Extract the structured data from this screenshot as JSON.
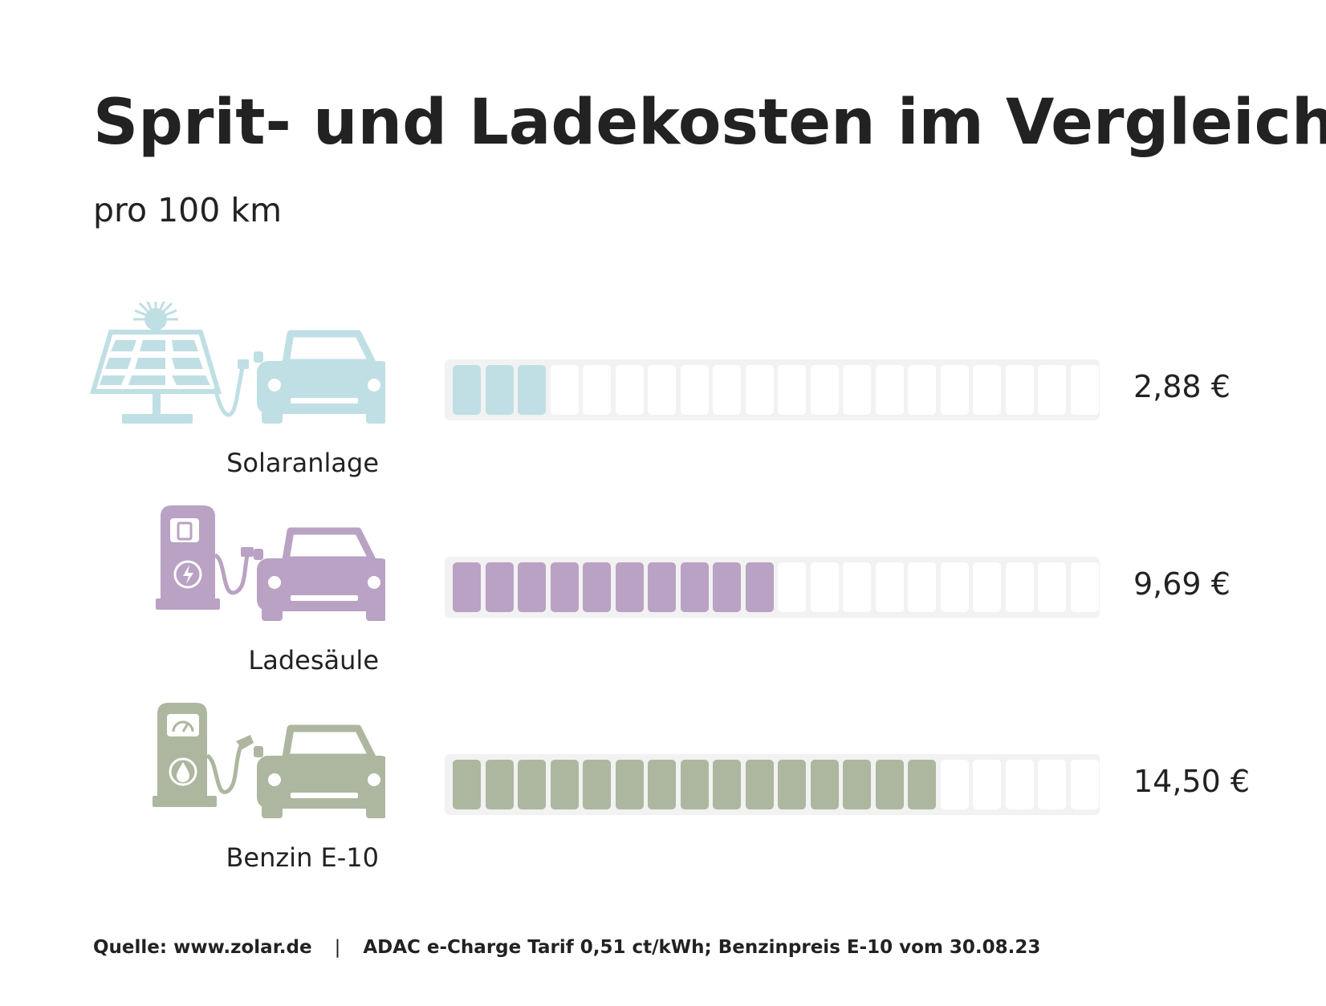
{
  "title": "Sprit- und Ladekosten im Vergleich",
  "subtitle": "pro 100 km",
  "footer": {
    "source": "Quelle: www.zolar.de",
    "separator": "|",
    "note": "ADAC e-Charge Tarif 0,51 ct/kWh; Benzinpreis E-10 vom 30.08.23"
  },
  "chart_data": {
    "type": "bar",
    "title": "Sprit- und Ladekosten im Vergleich",
    "subtitle": "pro 100 km",
    "categories": [
      "Solaranlage",
      "Ladesäule",
      "Benzin E-10"
    ],
    "values": [
      2.88,
      9.69,
      14.5
    ],
    "value_labels": [
      "2,88 €",
      "9,69 €",
      "14,50 €"
    ],
    "segments_total": 20,
    "segments_filled": [
      3,
      10,
      15
    ],
    "colors": [
      "#bfdfe4",
      "#b9a2c3",
      "#adb7a0"
    ],
    "icons": [
      "solar-panel-icon",
      "charging-station-icon",
      "fuel-pump-icon"
    ],
    "grid": false
  },
  "colors": {
    "track": "#f2f2f2",
    "empty_segment": "#ffffff",
    "text": "#222222"
  }
}
